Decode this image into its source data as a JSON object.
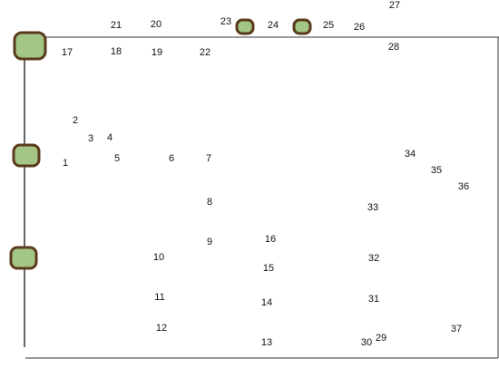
{
  "labels": [
    "1",
    "2",
    "3",
    "4",
    "5",
    "6",
    "7",
    "8",
    "9",
    "10",
    "11",
    "12",
    "13",
    "14",
    "15",
    "16",
    "17",
    "18",
    "19",
    "20",
    "21",
    "22",
    "23",
    "24",
    "25",
    "26",
    "27",
    "28",
    "29",
    "30",
    "31",
    "32",
    "33",
    "34",
    "35",
    "36",
    "37"
  ]
}
